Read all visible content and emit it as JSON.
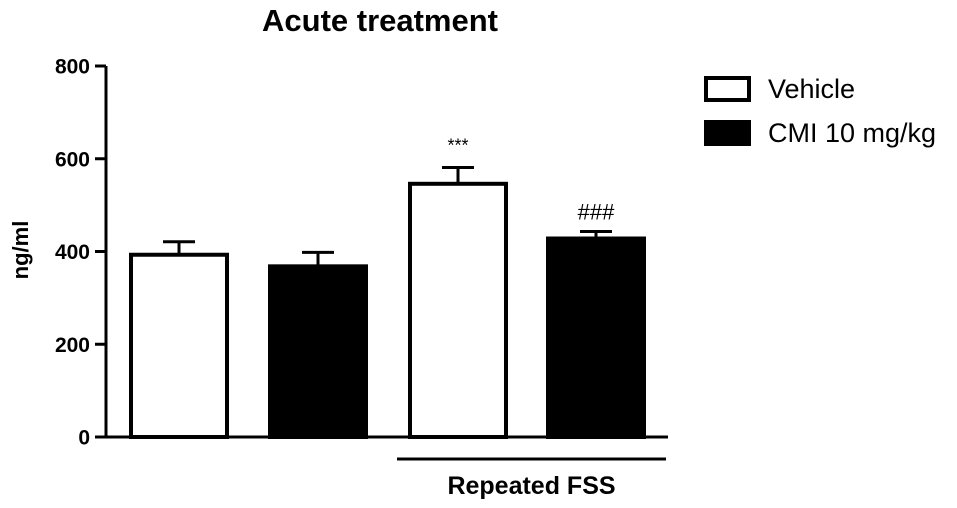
{
  "chart_data": {
    "type": "bar",
    "title": "Acute treatment",
    "xlabel": "",
    "ylabel": "ng/ml",
    "ylim": [
      0,
      800
    ],
    "yticks": [
      0,
      200,
      400,
      600,
      800
    ],
    "grid": false,
    "legend_position": "top-right",
    "series": [
      {
        "name": "Vehicle",
        "fill": "#ffffff",
        "stroke": "#000000"
      },
      {
        "name": "CMI 10 mg/kg",
        "fill": "#000000",
        "stroke": "#000000"
      }
    ],
    "bars": [
      {
        "series": "Vehicle",
        "value": 393,
        "error": 28,
        "annotation": ""
      },
      {
        "series": "CMI 10 mg/kg",
        "value": 368,
        "error": 30,
        "annotation": ""
      },
      {
        "series": "Vehicle",
        "value": 546,
        "error": 35,
        "annotation": "***"
      },
      {
        "series": "CMI 10 mg/kg",
        "value": 428,
        "error": 15,
        "annotation": "###"
      }
    ],
    "group_labels": [
      {
        "label": "Repeated FSS",
        "bar_indices": [
          2,
          3
        ]
      }
    ]
  }
}
